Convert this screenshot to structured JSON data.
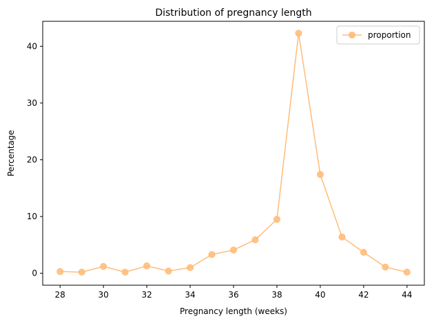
{
  "chart_data": {
    "type": "line",
    "title": "Distribution of pregnancy length",
    "xlabel": "Pregnancy length (weeks)",
    "ylabel": "Percentage",
    "xlim": [
      27.2,
      44.8
    ],
    "ylim": [
      -2.1,
      44.4
    ],
    "x_ticks": [
      28,
      30,
      32,
      34,
      36,
      38,
      40,
      42,
      44
    ],
    "y_ticks": [
      0,
      10,
      20,
      30,
      40
    ],
    "grid": false,
    "legend_position": "top-right",
    "series": [
      {
        "name": "proportion",
        "color": "#ffbb78",
        "marker": "circle",
        "x": [
          28,
          29,
          30,
          31,
          32,
          33,
          34,
          35,
          36,
          37,
          38,
          39,
          40,
          41,
          42,
          43,
          44
        ],
        "y": [
          0.3,
          0.2,
          1.2,
          0.2,
          1.3,
          0.4,
          1.0,
          3.3,
          4.1,
          5.9,
          9.5,
          42.3,
          17.4,
          6.4,
          3.7,
          1.1,
          0.2
        ]
      }
    ]
  }
}
